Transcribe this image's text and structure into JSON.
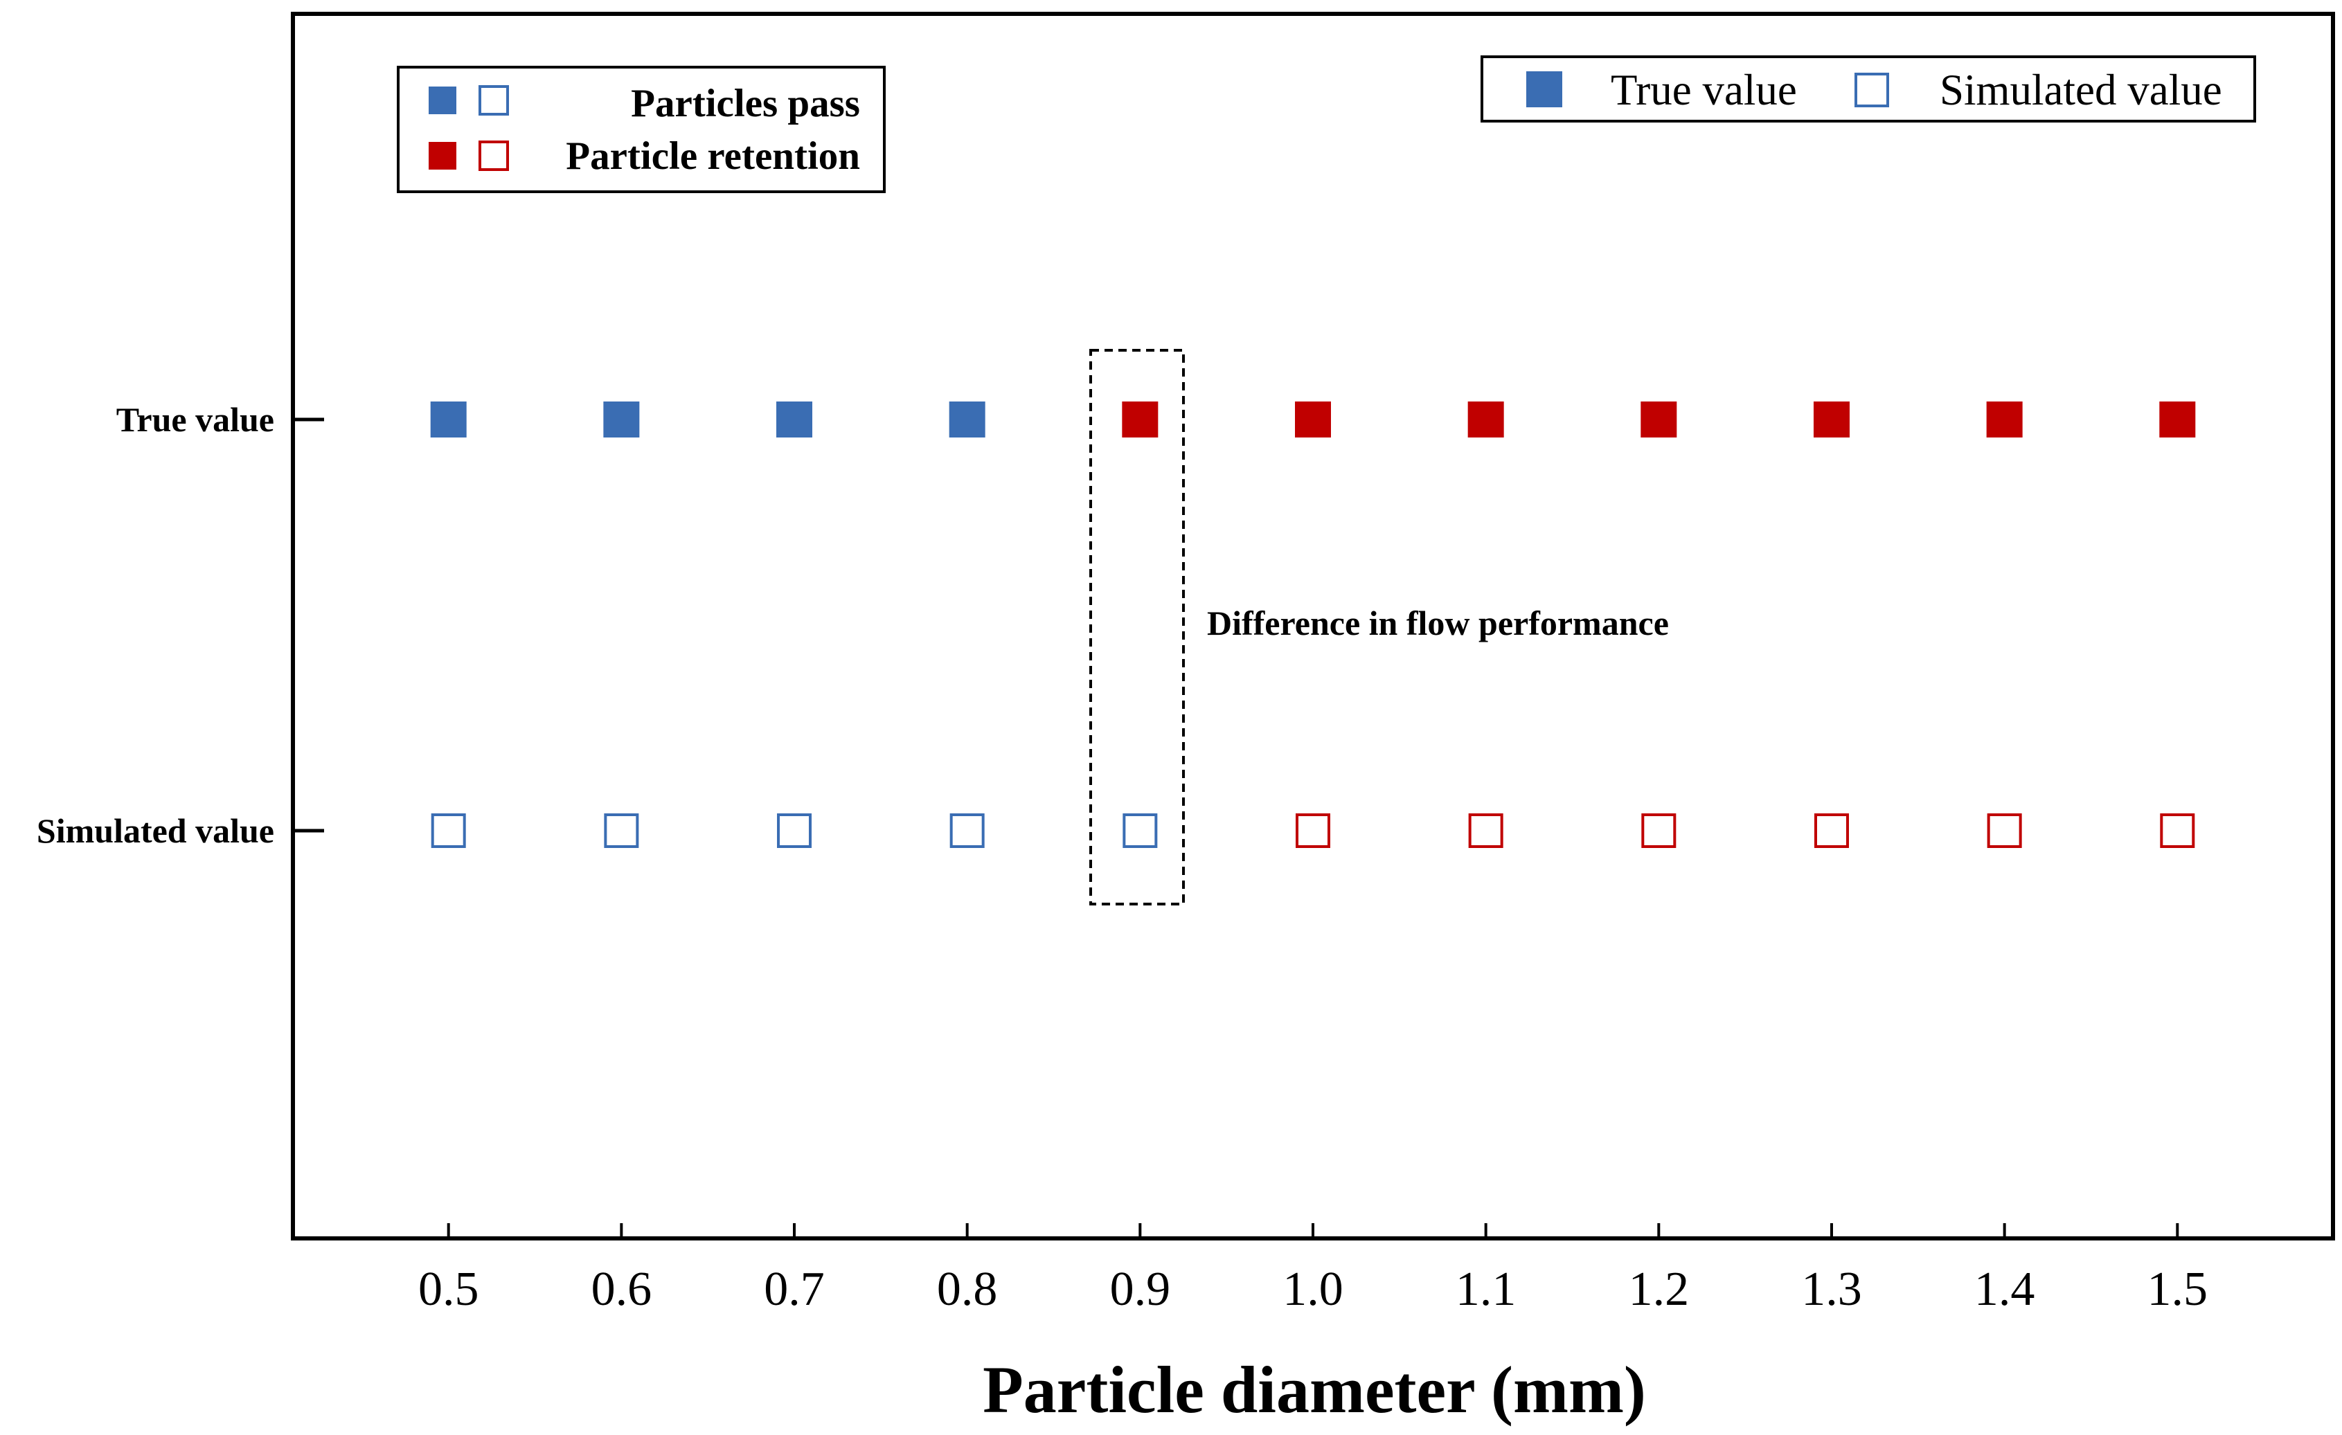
{
  "chart_data": {
    "type": "scatter",
    "title": "",
    "xlabel": "Particle diameter (mm)",
    "ylabel": "",
    "xlim": [
      0.41,
      1.59
    ],
    "x": [
      0.5,
      0.6,
      0.7,
      0.8,
      0.9,
      1.0,
      1.1,
      1.2,
      1.3,
      1.4,
      1.5
    ],
    "x_tick_labels": [
      "0.5",
      "0.6",
      "0.7",
      "0.8",
      "0.9",
      "1.0",
      "1.1",
      "1.2",
      "1.3",
      "1.4",
      "1.5"
    ],
    "y_categories": [
      "True value",
      "Simulated value"
    ],
    "series": [
      {
        "name": "True value",
        "marker": "filled-square",
        "outcomes": [
          "pass",
          "pass",
          "pass",
          "pass",
          "retention",
          "retention",
          "retention",
          "retention",
          "retention",
          "retention",
          "retention"
        ]
      },
      {
        "name": "Simulated value",
        "marker": "hollow-square",
        "outcomes": [
          "pass",
          "pass",
          "pass",
          "pass",
          "pass",
          "retention",
          "retention",
          "retention",
          "retention",
          "retention",
          "retention"
        ]
      }
    ],
    "outcome_legend": [
      {
        "key": "pass",
        "label": "Particles pass",
        "color": "#3a6db3"
      },
      {
        "key": "retention",
        "label": "Particle retention",
        "color": "#c00000"
      }
    ],
    "marker_legend": [
      {
        "label": "True value",
        "marker": "filled-square",
        "color": "#3a6db3"
      },
      {
        "label": "Simulated value",
        "marker": "hollow-square",
        "color": "#3a6db3"
      }
    ],
    "annotation": {
      "text": "Difference in flow performance",
      "highlight_x": 0.9
    },
    "grid": false
  },
  "colors": {
    "pass": "#3a6db3",
    "retention": "#c00000",
    "axis": "#000000"
  }
}
